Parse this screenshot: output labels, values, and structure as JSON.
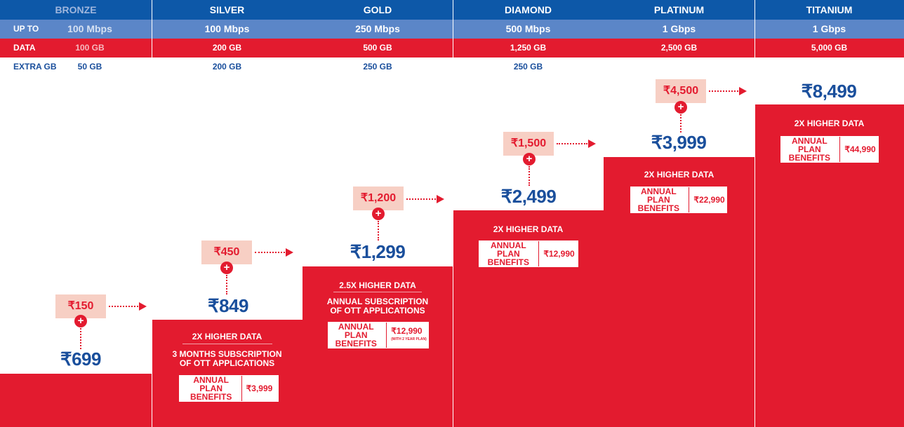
{
  "labels": {
    "up_to": "UP TO",
    "data": "DATA",
    "extra_gb": "EXTRA GB"
  },
  "plans": [
    {
      "name": "BRONZE",
      "speed": "100 Mbps",
      "data": "100 GB",
      "extra": "50 GB",
      "addon": "₹150",
      "price": "₹699",
      "features": [],
      "benefit_label": "",
      "benefit_value": ""
    },
    {
      "name": "SILVER",
      "speed": "100 Mbps",
      "data": "200 GB",
      "extra": "200 GB",
      "addon": "₹450",
      "price": "₹849",
      "features": [
        "2X HIGHER DATA",
        "3 MONTHS SUBSCRIPTION",
        "OF OTT APPLICATIONS"
      ],
      "benefit_label": "ANNUAL PLAN BENEFITS",
      "benefit_value": "₹3,999"
    },
    {
      "name": "GOLD",
      "speed": "250 Mbps",
      "data": "500 GB",
      "extra": "250 GB",
      "addon": "₹1,200",
      "price": "₹1,299",
      "features": [
        "2.5X HIGHER DATA",
        "ANNUAL SUBSCRIPTION",
        "OF OTT APPLICATIONS"
      ],
      "benefit_label": "ANNUAL PLAN BENEFITS",
      "benefit_value": "₹12,990",
      "benefit_note": "(WITH 2 YEAR PLAN)"
    },
    {
      "name": "DIAMOND",
      "speed": "500 Mbps",
      "data": "1,250 GB",
      "extra": "250 GB",
      "addon": "₹1,500",
      "price": "₹2,499",
      "features": [
        "2X HIGHER DATA"
      ],
      "benefit_label": "ANNUAL PLAN BENEFITS",
      "benefit_value": "₹12,990"
    },
    {
      "name": "PLATINUM",
      "speed": "1 Gbps",
      "data": "2,500 GB",
      "extra": "",
      "addon": "₹4,500",
      "price": "₹3,999",
      "features": [
        "2X HIGHER DATA"
      ],
      "benefit_label": "ANNUAL PLAN BENEFITS",
      "benefit_value": "₹22,990"
    },
    {
      "name": "TITANIUM",
      "speed": "1 Gbps",
      "data": "5,000 GB",
      "extra": "",
      "addon": "",
      "price": "₹8,499",
      "features": [
        "2X HIGHER DATA"
      ],
      "benefit_label": "ANNUAL PLAN BENEFITS",
      "benefit_value": "₹44,990"
    }
  ],
  "colors": {
    "blue": "#0d58a8",
    "light_blue": "#5b86c8",
    "red": "#e31b2f",
    "peach": "#f7cfc4"
  }
}
